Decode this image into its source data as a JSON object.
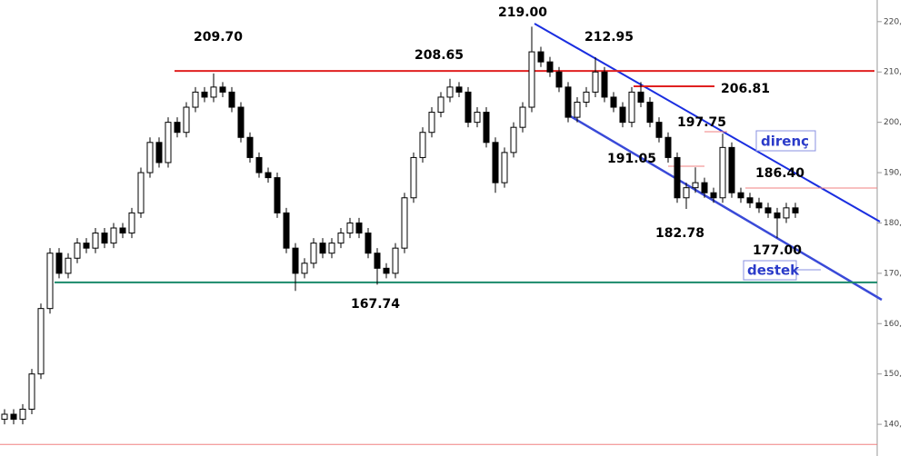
{
  "chart_data": {
    "type": "candlestick",
    "open": [
      141,
      142,
      141,
      143,
      150,
      163,
      174,
      170,
      173,
      176,
      175,
      178,
      176,
      179,
      178,
      182,
      190,
      196,
      192,
      200,
      198,
      203,
      206,
      205,
      207,
      206,
      203,
      197,
      193,
      190,
      189,
      182,
      175,
      170,
      172,
      176,
      174,
      176,
      178,
      180,
      178,
      174,
      171,
      170,
      175,
      185,
      193,
      198,
      202,
      205,
      207,
      206,
      200,
      202,
      196,
      188,
      194,
      199,
      203,
      214,
      212,
      210,
      207,
      201,
      204,
      206,
      210,
      205,
      203,
      200,
      206,
      204,
      200,
      197,
      193,
      185,
      187,
      188,
      186,
      185,
      195,
      186,
      185,
      184,
      183,
      182,
      181,
      183
    ],
    "high": [
      143,
      143,
      144,
      151,
      164,
      175,
      175,
      174,
      177,
      177,
      179,
      179,
      180,
      180,
      183,
      191,
      197,
      197,
      201,
      201,
      204,
      207,
      207,
      209.7,
      208,
      207,
      204,
      198,
      194,
      191,
      190,
      183,
      176,
      173,
      177,
      177,
      177,
      179,
      181,
      181,
      179,
      175,
      172,
      176,
      186,
      194,
      199,
      203,
      206,
      208.65,
      208,
      207,
      203,
      203,
      197,
      195,
      200,
      204,
      219,
      215,
      213,
      211,
      208,
      205,
      207,
      212.95,
      211,
      206,
      204,
      207,
      208,
      205,
      201,
      198,
      194,
      188,
      191.05,
      189,
      187,
      197.75,
      196,
      187,
      186,
      185,
      184,
      183,
      184,
      184
    ],
    "low": [
      140,
      140,
      140,
      142,
      149,
      162,
      169,
      169,
      172,
      174,
      174,
      175,
      175,
      177,
      177,
      181,
      189,
      191,
      191,
      197,
      197,
      202,
      204,
      204,
      205,
      202,
      196,
      192,
      189,
      188,
      181,
      174,
      166.5,
      169,
      171,
      173,
      173,
      175,
      177,
      177,
      173,
      167.74,
      169,
      169,
      174,
      184,
      192,
      197,
      201,
      204,
      205,
      199,
      199,
      195,
      186,
      187,
      193,
      198,
      202,
      211,
      209,
      206,
      200,
      200,
      203,
      205,
      204,
      202,
      199,
      199,
      203,
      199,
      196,
      192,
      184,
      182.78,
      186,
      185,
      184,
      184,
      185,
      184,
      183,
      182,
      181,
      177,
      180,
      181
    ],
    "close": [
      142,
      141,
      143,
      150,
      163,
      174,
      170,
      173,
      176,
      175,
      178,
      176,
      179,
      178,
      182,
      190,
      196,
      192,
      200,
      198,
      203,
      206,
      205,
      207,
      206,
      203,
      197,
      193,
      190,
      189,
      182,
      175,
      170,
      172,
      176,
      174,
      176,
      178,
      180,
      178,
      174,
      171,
      170,
      175,
      185,
      193,
      198,
      202,
      205,
      207,
      206,
      200,
      202,
      196,
      188,
      194,
      199,
      203,
      214,
      212,
      210,
      207,
      201,
      204,
      206,
      210,
      205,
      203,
      200,
      206,
      204,
      200,
      197,
      193,
      185,
      187,
      188,
      186,
      185,
      195,
      186,
      185,
      184,
      183,
      182,
      181,
      183,
      182
    ],
    "ylim": [
      133.7,
      224.3
    ],
    "yticks": [
      {
        "value": 140,
        "label": "140,"
      },
      {
        "value": 150,
        "label": "150,"
      },
      {
        "value": 160,
        "label": "160,"
      },
      {
        "value": 170,
        "label": "170,"
      },
      {
        "value": 180,
        "label": "180,"
      },
      {
        "value": 190,
        "label": "190,"
      },
      {
        "value": 200,
        "label": "200,"
      },
      {
        "value": 210,
        "label": "210,"
      },
      {
        "value": 220,
        "label": "220,"
      }
    ],
    "resistance_level": 210.2,
    "support_level": 168.2,
    "bottom_level": 136.0,
    "annotations": [
      "209.70",
      "208.65",
      "219.00",
      "212.95",
      "206.81",
      "197.75",
      "191.05",
      "186.40",
      "182.78",
      "177.00",
      "167.74"
    ],
    "channel_labels": [
      "direnç",
      "destek"
    ]
  }
}
